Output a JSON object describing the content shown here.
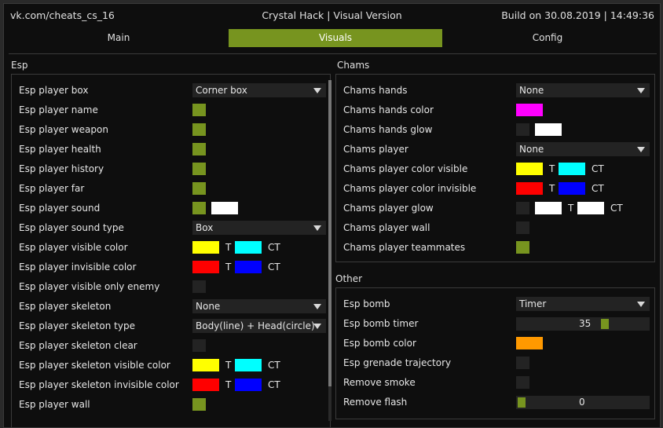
{
  "titlebar": {
    "left": "vk.com/cheats_cs_16",
    "center": "Crystal Hack | Visual Version",
    "right": "Build on 30.08.2019 | 14:49:36"
  },
  "tabs": [
    {
      "label": "Main",
      "active": false
    },
    {
      "label": "Visuals",
      "active": true
    },
    {
      "label": "Config",
      "active": false
    }
  ],
  "esp": {
    "title": "Esp",
    "rows": [
      {
        "label": "Esp player box",
        "combo": "Corner box"
      },
      {
        "label": "Esp player name",
        "check": true
      },
      {
        "label": "Esp player weapon",
        "check": true
      },
      {
        "label": "Esp player health",
        "check": true
      },
      {
        "label": "Esp player history",
        "check": true
      },
      {
        "label": "Esp player far",
        "check": true
      },
      {
        "label": "Esp player sound",
        "check": true,
        "swatch": "#ffffff"
      },
      {
        "label": "Esp player sound type",
        "combo": "Box"
      },
      {
        "label": "Esp player visible color",
        "colors": [
          {
            "color": "#ffff00",
            "tag": "T"
          },
          {
            "color": "#00ffff",
            "tag": "CT"
          }
        ]
      },
      {
        "label": "Esp player invisible color",
        "colors": [
          {
            "color": "#ff0000",
            "tag": "T"
          },
          {
            "color": "#0000ff",
            "tag": "CT"
          }
        ]
      },
      {
        "label": "Esp player visible only enemy",
        "check": false
      },
      {
        "label": "Esp player skeleton",
        "combo": "None"
      },
      {
        "label": "Esp player skeleton type",
        "combo": "Body(line) + Head(circle)"
      },
      {
        "label": "Esp player skeleton clear",
        "check": false
      },
      {
        "label": "Esp player skeleton visible color",
        "colors": [
          {
            "color": "#ffff00",
            "tag": "T"
          },
          {
            "color": "#00ffff",
            "tag": "CT"
          }
        ]
      },
      {
        "label": "Esp player skeleton invisible color",
        "colors": [
          {
            "color": "#ff0000",
            "tag": "T"
          },
          {
            "color": "#0000ff",
            "tag": "CT"
          }
        ]
      },
      {
        "label": "Esp player wall",
        "check": true
      }
    ]
  },
  "chams": {
    "title": "Chams",
    "rows": [
      {
        "label": "Chams hands",
        "combo": "None"
      },
      {
        "label": "Chams hands color",
        "swatch": "#ff00ff"
      },
      {
        "label": "Chams hands glow",
        "check": false,
        "swatch": "#ffffff"
      },
      {
        "label": "Chams player",
        "combo": "None"
      },
      {
        "label": "Chams player color visible",
        "colors": [
          {
            "color": "#ffff00",
            "tag": "T"
          },
          {
            "color": "#00ffff",
            "tag": "CT"
          }
        ]
      },
      {
        "label": "Chams player color invisible",
        "colors": [
          {
            "color": "#ff0000",
            "tag": "T"
          },
          {
            "color": "#0000ff",
            "tag": "CT"
          }
        ]
      },
      {
        "label": "Chams player glow",
        "check": false,
        "colors": [
          {
            "color": "#ffffff",
            "tag": "T"
          },
          {
            "color": "#ffffff",
            "tag": "CT"
          }
        ]
      },
      {
        "label": "Chams player wall",
        "check": false
      },
      {
        "label": "Chams player teammates",
        "check": true
      }
    ]
  },
  "other": {
    "title": "Other",
    "rows": [
      {
        "label": "Esp bomb",
        "combo": "Timer"
      },
      {
        "label": "Esp bomb timer",
        "slider": {
          "value": "35",
          "fraction": 0.68
        }
      },
      {
        "label": "Esp bomb color",
        "swatch": "#ff9900"
      },
      {
        "label": "Esp grenade trajectory",
        "check": false
      },
      {
        "label": "Remove smoke",
        "check": false
      },
      {
        "label": "Remove flash",
        "slider": {
          "value": "0",
          "fraction": 0.0
        }
      }
    ]
  },
  "colors": {
    "accent": "#77941f",
    "background": "#0e0e0e",
    "control": "#232323"
  }
}
